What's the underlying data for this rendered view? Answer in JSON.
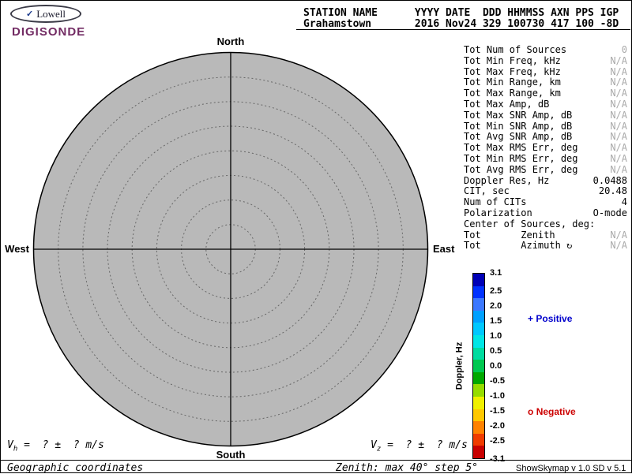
{
  "logo": {
    "mark": "✓",
    "name": "Lowell",
    "product": "DIGISONDE"
  },
  "header": {
    "line1": "STATION NAME      YYYY DATE  DDD HHMMSS AXN PPS IGP",
    "line2": "Grahamstown       2016 Nov24 329 100730 417 100 -8D"
  },
  "compass": {
    "north": "North",
    "south": "South",
    "east": "East",
    "west": "West"
  },
  "stats": {
    "rows": [
      {
        "label": "Tot Num of Sources",
        "value": "0",
        "muted": true
      },
      {
        "label": "Tot Min Freq, kHz",
        "value": "N/A",
        "muted": true
      },
      {
        "label": "Tot Max Freq, kHz",
        "value": "N/A",
        "muted": true
      },
      {
        "label": "Tot Min Range, km",
        "value": "N/A",
        "muted": true
      },
      {
        "label": "Tot Max Range, km",
        "value": "N/A",
        "muted": true
      },
      {
        "label": "Tot Max Amp, dB",
        "value": "N/A",
        "muted": true
      },
      {
        "label": "Tot Max SNR Amp, dB",
        "value": "N/A",
        "muted": true
      },
      {
        "label": "Tot Min SNR Amp, dB",
        "value": "N/A",
        "muted": true
      },
      {
        "label": "Tot Avg SNR Amp, dB",
        "value": "N/A",
        "muted": true
      },
      {
        "label": "Tot Max RMS Err, deg",
        "value": "N/A",
        "muted": true
      },
      {
        "label": "Tot Min RMS Err, deg",
        "value": "N/A",
        "muted": true
      },
      {
        "label": "Tot Avg RMS Err, deg",
        "value": "N/A",
        "muted": true
      },
      {
        "label": "Doppler Res, Hz",
        "value": "0.0488",
        "muted": false
      },
      {
        "label": "CIT, sec",
        "value": "20.48",
        "muted": false
      },
      {
        "label": "Num of CITs",
        "value": "4",
        "muted": false
      },
      {
        "label": "Polarization",
        "value": "O-mode",
        "muted": false
      },
      {
        "label": "Center of Sources, deg:",
        "value": "",
        "muted": false
      },
      {
        "label": "Tot       Zenith",
        "value": "N/A",
        "muted": true
      },
      {
        "label": "Tot       Azimuth ↻",
        "value": "N/A",
        "muted": true
      }
    ]
  },
  "colorbar": {
    "axis_label": "Doppler, Hz",
    "ticks": [
      "3.1",
      "2.5",
      "2.0",
      "1.5",
      "1.0",
      "0.5",
      "0.0",
      "-0.5",
      "-1.0",
      "-1.5",
      "-2.0",
      "-2.5",
      "-3.1"
    ],
    "min": -3.1,
    "max": 3.1,
    "segments": [
      "#0000b6",
      "#0032ff",
      "#3c78ff",
      "#00a0ff",
      "#00c8ff",
      "#00e6e6",
      "#00dca0",
      "#00c850",
      "#00a800",
      "#96dc00",
      "#f0f000",
      "#ffc800",
      "#ff8200",
      "#f03c00",
      "#c80000"
    ],
    "positive": {
      "marker": "+",
      "label": "Positive",
      "color": "#0000cc"
    },
    "negative": {
      "marker": "o",
      "label": "Negative",
      "color": "#cc0000"
    }
  },
  "footer": {
    "vh": {
      "base": "V",
      "sub": "h",
      "rest": " =  ? ±  ? m/s"
    },
    "vz": {
      "base": "V",
      "sub": "z",
      "rest": " =  ? ±  ? m/s"
    },
    "coords": "Geographic coordinates",
    "zenith": "Zenith: max 40°  step 5°",
    "version": "ShowSkymap v 1.0  SD v 5.1"
  },
  "chart_data": {
    "type": "scatter",
    "title": "Digisonde skymap (Grahamstown 2016 Nov24 329 100730)",
    "projection": "polar",
    "points": [],
    "num_sources": 0,
    "zenith_max_deg": 40,
    "zenith_step_deg": 5,
    "compass_labels": [
      "North",
      "East",
      "South",
      "West"
    ],
    "colorbar": {
      "label": "Doppler, Hz",
      "min": -3.1,
      "max": 3.1
    },
    "legend": [
      "+ Positive",
      "o Negative"
    ],
    "annotations": [
      "Vh = ? ± ? m/s",
      "Vz = ? ± ? m/s",
      "Geographic coordinates",
      "Zenith: max 40° step 5°"
    ]
  }
}
